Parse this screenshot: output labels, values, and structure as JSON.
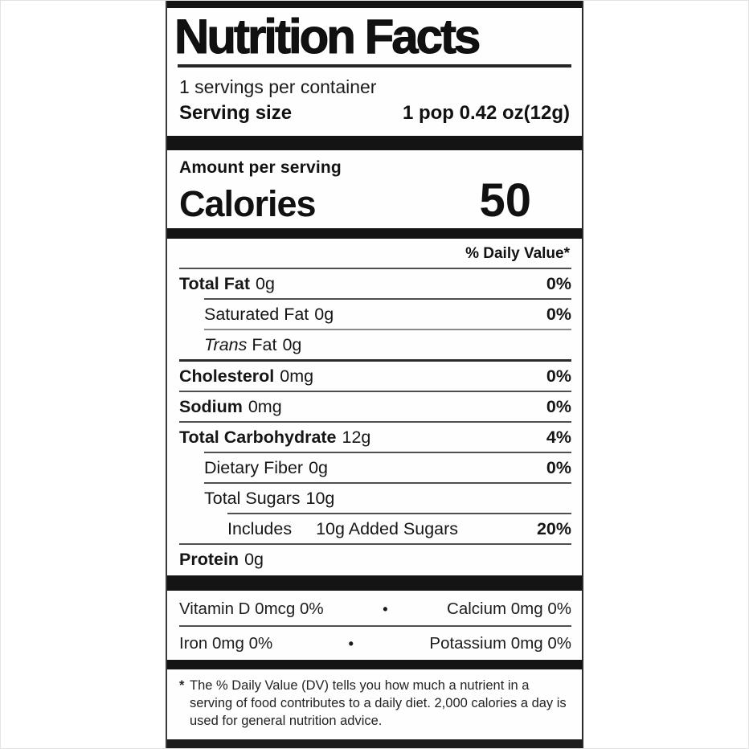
{
  "nutrition_label": {
    "title": "Nutrition Facts",
    "servings_per_container": "1 servings per container",
    "serving_size": {
      "label": "Serving size",
      "value": "1 pop 0.42 oz(12g)"
    },
    "amount_per_serving": "Amount per serving",
    "calories": {
      "label": "Calories",
      "value": "50"
    },
    "daily_value_header": "% Daily Value*",
    "rows": [
      {
        "italic": "",
        "name": "Total Fat",
        "amount": "0g",
        "dv": "0%"
      },
      {
        "italic": "",
        "name": "Saturated Fat",
        "amount": "0g",
        "dv": "0%"
      },
      {
        "italic": "Trans",
        "name": "Fat",
        "amount": "0g",
        "dv": ""
      },
      {
        "italic": "",
        "name": "Cholesterol",
        "amount": "0mg",
        "dv": "0%"
      },
      {
        "italic": "",
        "name": "Sodium",
        "amount": "0mg",
        "dv": "0%"
      },
      {
        "italic": "",
        "name": "Total Carbohydrate",
        "amount": "12g",
        "dv": "4%"
      },
      {
        "italic": "",
        "name": "Dietary Fiber",
        "amount": "0g",
        "dv": "0%"
      },
      {
        "italic": "",
        "name": "Total Sugars",
        "amount": "10g",
        "dv": ""
      },
      {
        "italic": "",
        "name": "Includes",
        "amount": "10g Added Sugars",
        "dv": "20%"
      },
      {
        "italic": "",
        "name": "Protein",
        "amount": "0g",
        "dv": ""
      }
    ],
    "micronutrients": [
      {
        "left": "Vitamin D 0mcg 0%",
        "separator": "•",
        "right": "Calcium 0mg 0%"
      },
      {
        "left": "Iron 0mg 0%",
        "separator": "•",
        "right": "Potassium 0mg 0%"
      }
    ],
    "footnote": {
      "marker": "*",
      "text": "The % Daily Value (DV) tells you how much a nutrient in a serving of food contributes to a daily diet. 2,000 calories a day is used for general nutrition advice."
    },
    "colors": {
      "ink": "#141414",
      "hairline": "#4f4f4f",
      "background": "#ffffff"
    }
  }
}
